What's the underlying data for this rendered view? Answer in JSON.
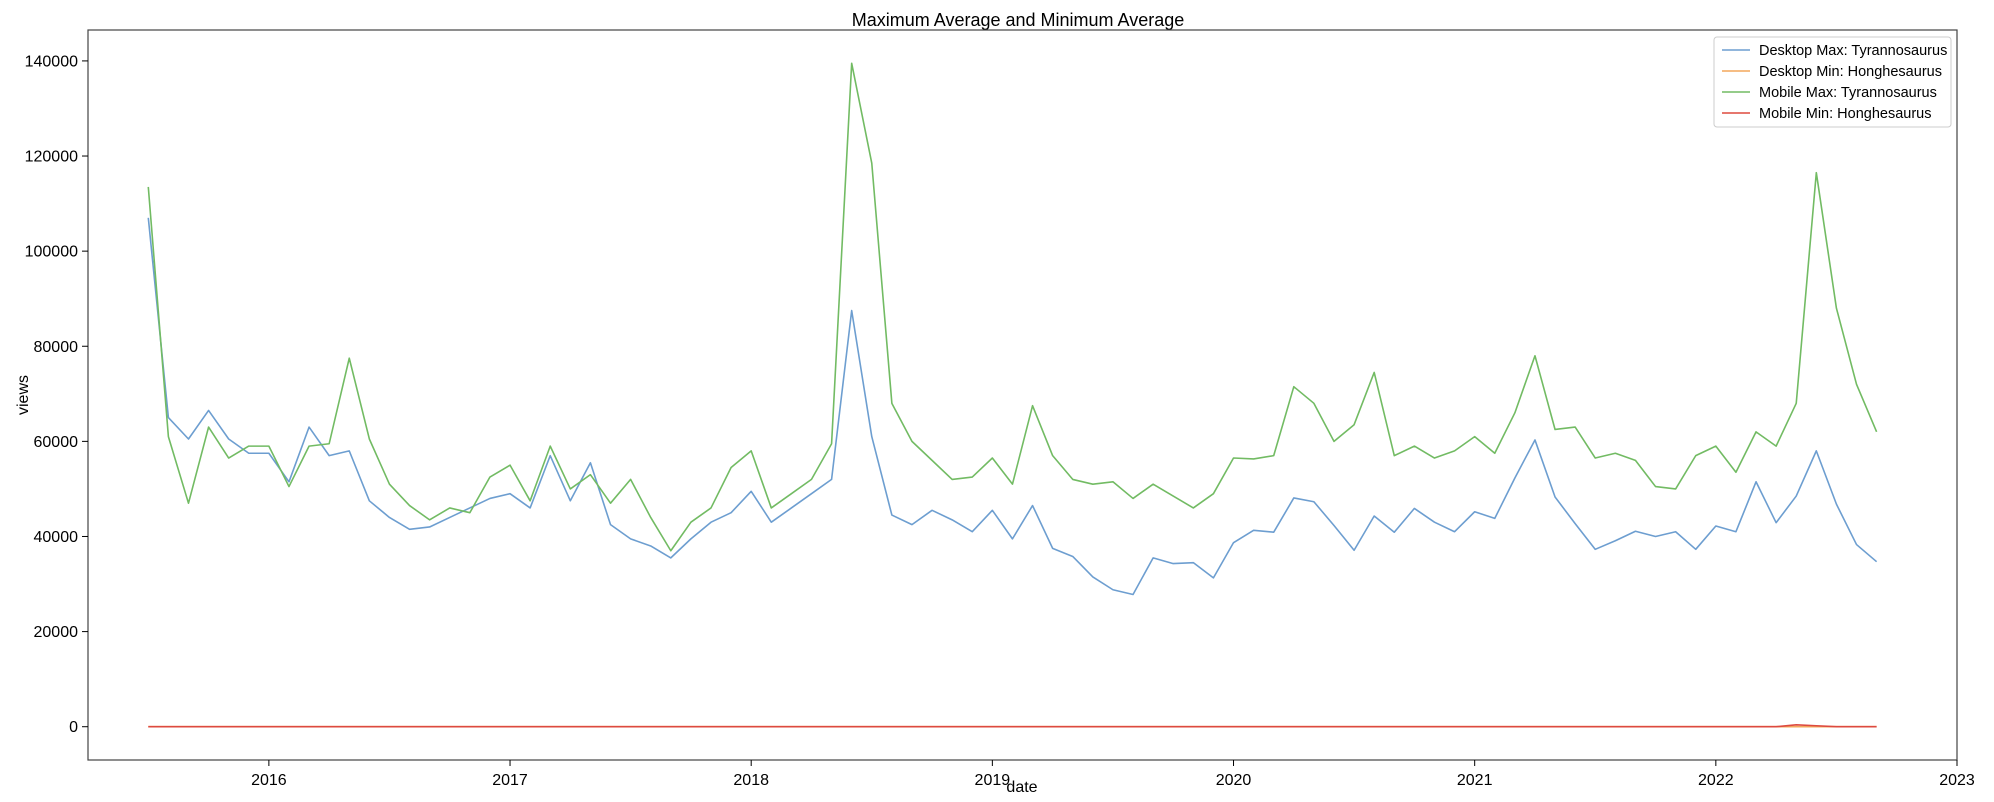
{
  "chart_data": {
    "type": "line",
    "title": "Maximum Average and Minimum Average",
    "xlabel": "date",
    "ylabel": "views",
    "x_start": "2015-07",
    "x_ticks": [
      "2016",
      "2017",
      "2018",
      "2019",
      "2020",
      "2021",
      "2022",
      "2023"
    ],
    "y_ticks": [
      0,
      20000,
      40000,
      60000,
      80000,
      100000,
      120000,
      140000
    ],
    "xlim": [
      "2015-04",
      "2023-01"
    ],
    "ylim": [
      -7000,
      146500
    ],
    "grid": false,
    "legend_position": "top-right",
    "series": [
      {
        "name": "Desktop Max: Tyrannosaurus",
        "color": "#6d9ed0",
        "values": [
          107000,
          65000,
          60500,
          66500,
          60500,
          57500,
          57500,
          51500,
          63000,
          57000,
          58000,
          47500,
          44000,
          41500,
          42000,
          44000,
          46000,
          48000,
          49000,
          46000,
          57000,
          47500,
          55500,
          42500,
          39500,
          38000,
          35500,
          39500,
          43000,
          45000,
          49500,
          43000,
          46000,
          49000,
          52000,
          87500,
          61000,
          44500,
          42500,
          45500,
          43500,
          41000,
          45500,
          39500,
          46500,
          37500,
          35800,
          31500,
          28800,
          27800,
          35500,
          34300,
          34500,
          31300,
          38700,
          41300,
          40900,
          48100,
          47300,
          42300,
          37100,
          44300,
          40900,
          45900,
          43000,
          41000,
          45200,
          43800,
          52300,
          60300,
          48300,
          42700,
          37300,
          39100,
          41100,
          40000,
          41000,
          37300,
          42200,
          41000,
          51500,
          42900,
          48500,
          58000,
          46800,
          38300,
          34700
        ]
      },
      {
        "name": "Desktop Min: Honghesaurus",
        "color": "#f3a75b",
        "values": [
          0,
          0,
          0,
          0,
          0,
          0,
          0,
          0,
          0,
          0,
          0,
          0,
          0,
          0,
          0,
          0,
          0,
          0,
          0,
          0,
          0,
          0,
          0,
          0,
          0,
          0,
          0,
          0,
          0,
          0,
          0,
          0,
          0,
          0,
          0,
          0,
          0,
          0,
          0,
          0,
          0,
          0,
          0,
          0,
          0,
          0,
          0,
          0,
          0,
          0,
          0,
          0,
          0,
          0,
          0,
          0,
          0,
          0,
          0,
          0,
          0,
          0,
          0,
          0,
          0,
          0,
          0,
          0,
          0,
          0,
          0,
          0,
          0,
          0,
          0,
          0,
          0,
          0,
          0,
          0,
          0,
          0,
          0,
          0,
          0,
          0,
          0
        ]
      },
      {
        "name": "Mobile Max: Tyrannosaurus",
        "color": "#72bb63",
        "values": [
          113500,
          61000,
          47000,
          63000,
          56500,
          59000,
          59000,
          50500,
          59000,
          59500,
          77500,
          60500,
          51000,
          46500,
          43500,
          46000,
          45000,
          52500,
          55000,
          47500,
          59000,
          50000,
          53000,
          47000,
          52000,
          44000,
          37000,
          43000,
          46000,
          54500,
          58000,
          46000,
          49000,
          52000,
          59500,
          139500,
          118500,
          68000,
          60000,
          56000,
          52000,
          52500,
          56500,
          51000,
          67500,
          57000,
          52000,
          51000,
          51500,
          48000,
          51000,
          48500,
          46000,
          49000,
          56500,
          56300,
          57000,
          71500,
          68000,
          60000,
          63500,
          74500,
          57000,
          59000,
          56500,
          58000,
          61000,
          57500,
          66000,
          78000,
          62500,
          63000,
          56500,
          57500,
          56000,
          50500,
          50000,
          57000,
          59000,
          53500,
          62000,
          59000,
          68000,
          116500,
          88000,
          72000,
          62000
        ]
      },
      {
        "name": "Mobile Min: Honghesaurus",
        "color": "#dd4a3f",
        "values": [
          0,
          0,
          0,
          0,
          0,
          0,
          0,
          0,
          0,
          0,
          0,
          0,
          0,
          0,
          0,
          0,
          0,
          0,
          0,
          0,
          0,
          0,
          0,
          0,
          0,
          0,
          0,
          0,
          0,
          0,
          0,
          0,
          0,
          0,
          0,
          0,
          0,
          0,
          0,
          0,
          0,
          0,
          0,
          0,
          0,
          0,
          0,
          0,
          0,
          0,
          0,
          0,
          0,
          0,
          0,
          0,
          0,
          0,
          0,
          0,
          0,
          0,
          0,
          0,
          0,
          0,
          0,
          0,
          0,
          0,
          0,
          0,
          0,
          0,
          0,
          0,
          0,
          0,
          0,
          0,
          0,
          0,
          400,
          200,
          0,
          0,
          0
        ]
      }
    ]
  }
}
